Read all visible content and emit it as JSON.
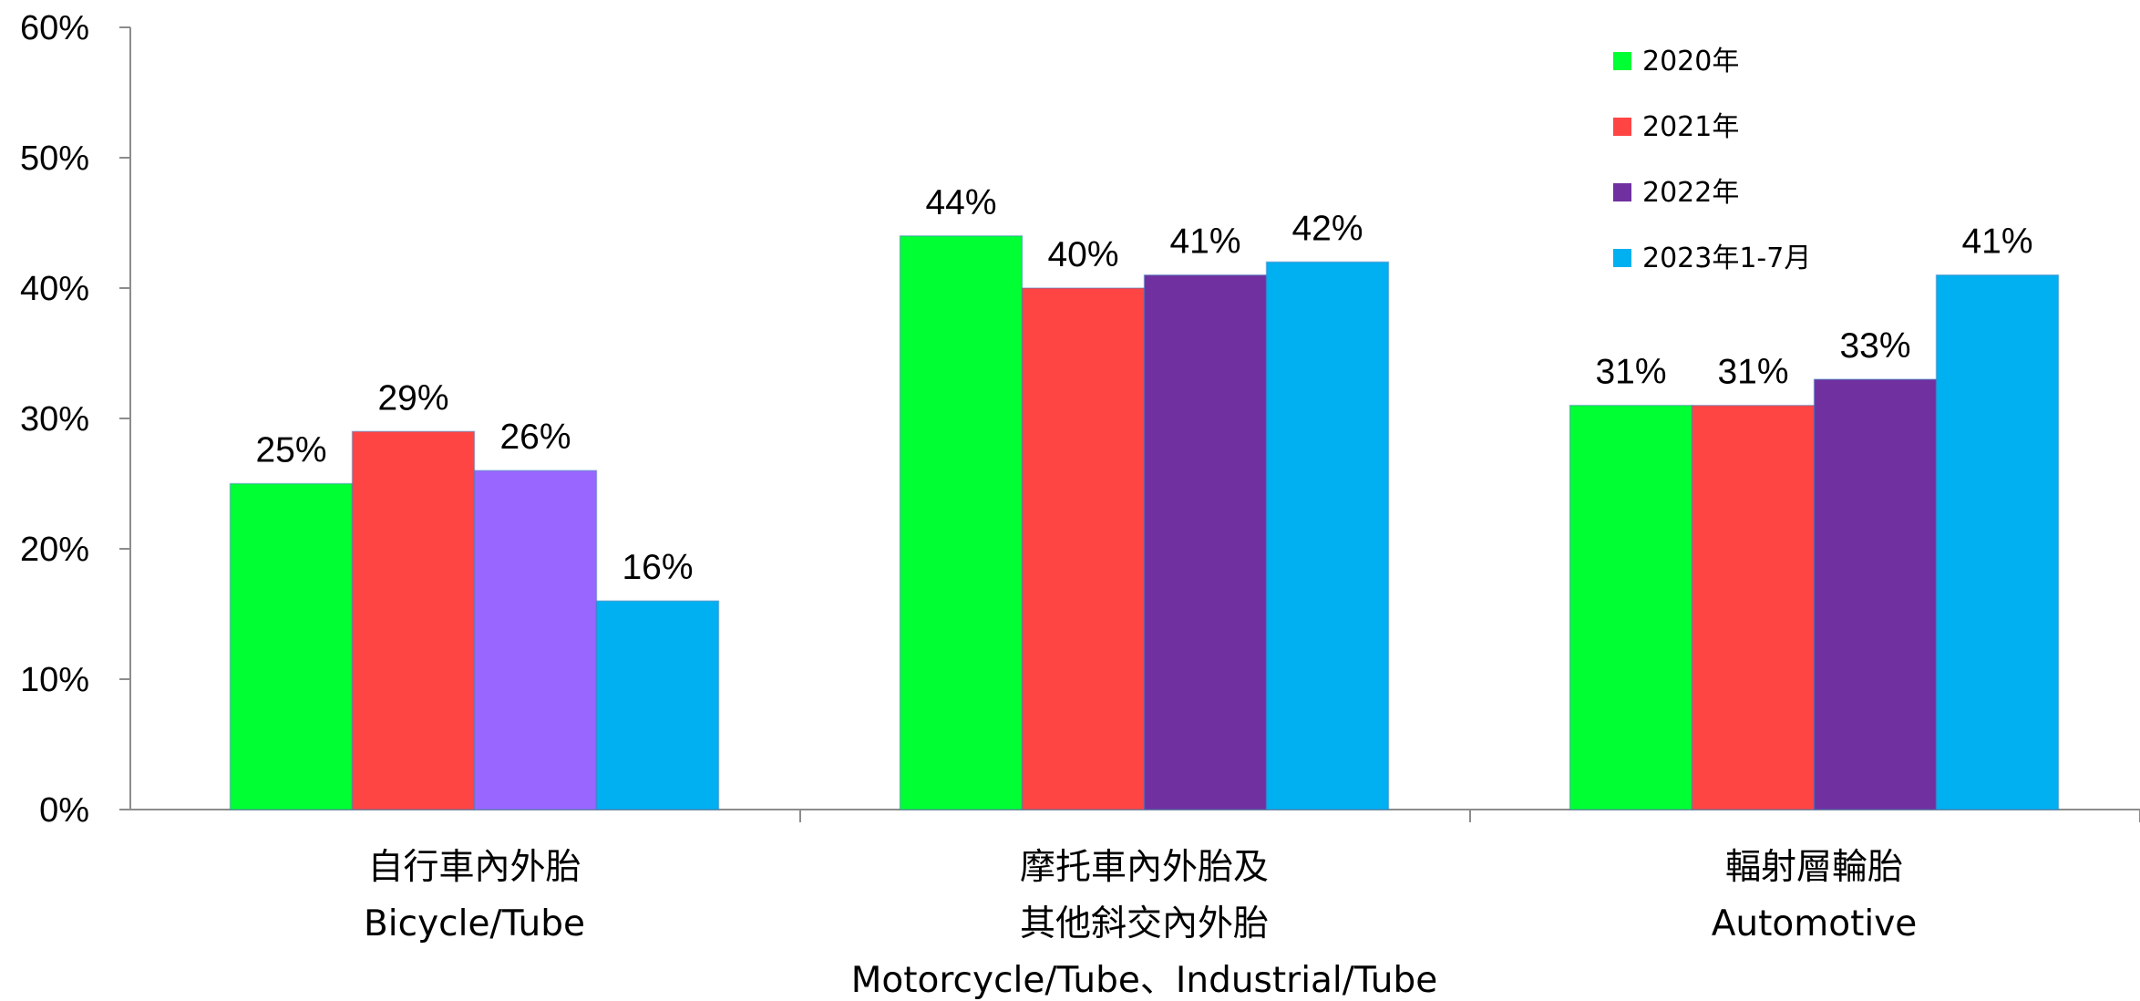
{
  "chart_data": {
    "type": "bar",
    "ylim": [
      0,
      60
    ],
    "yticks": [
      "0%",
      "10%",
      "20%",
      "30%",
      "40%",
      "50%",
      "60%"
    ],
    "legend_position": "top-right",
    "grid": false,
    "categories": [
      [
        "自行車內外胎",
        "Bicycle/Tube"
      ],
      [
        "摩托車內外胎及",
        "其他斜交內外胎",
        "Motorcycle/Tube、Industrial/Tube"
      ],
      [
        "輻射層輪胎",
        "Automotive"
      ]
    ],
    "series": [
      {
        "name": "2020年",
        "color": "#00ff33",
        "values": [
          25,
          44,
          31
        ],
        "labels": [
          "25%",
          "44%",
          "31%"
        ]
      },
      {
        "name": "2021年",
        "color": "#ff4444",
        "values": [
          29,
          40,
          31
        ],
        "labels": [
          "29%",
          "40%",
          "31%"
        ]
      },
      {
        "name": "2022年",
        "color": "#7030a0",
        "values": [
          26,
          41,
          33
        ],
        "labels": [
          "26%",
          "41%",
          "33%"
        ],
        "point_colors": [
          "#9966ff",
          "#7030a0",
          "#7030a0"
        ]
      },
      {
        "name": "2023年1-7月",
        "color": "#00b0f0",
        "values": [
          16,
          42,
          41
        ],
        "labels": [
          "16%",
          "42%",
          "41%"
        ]
      }
    ]
  }
}
